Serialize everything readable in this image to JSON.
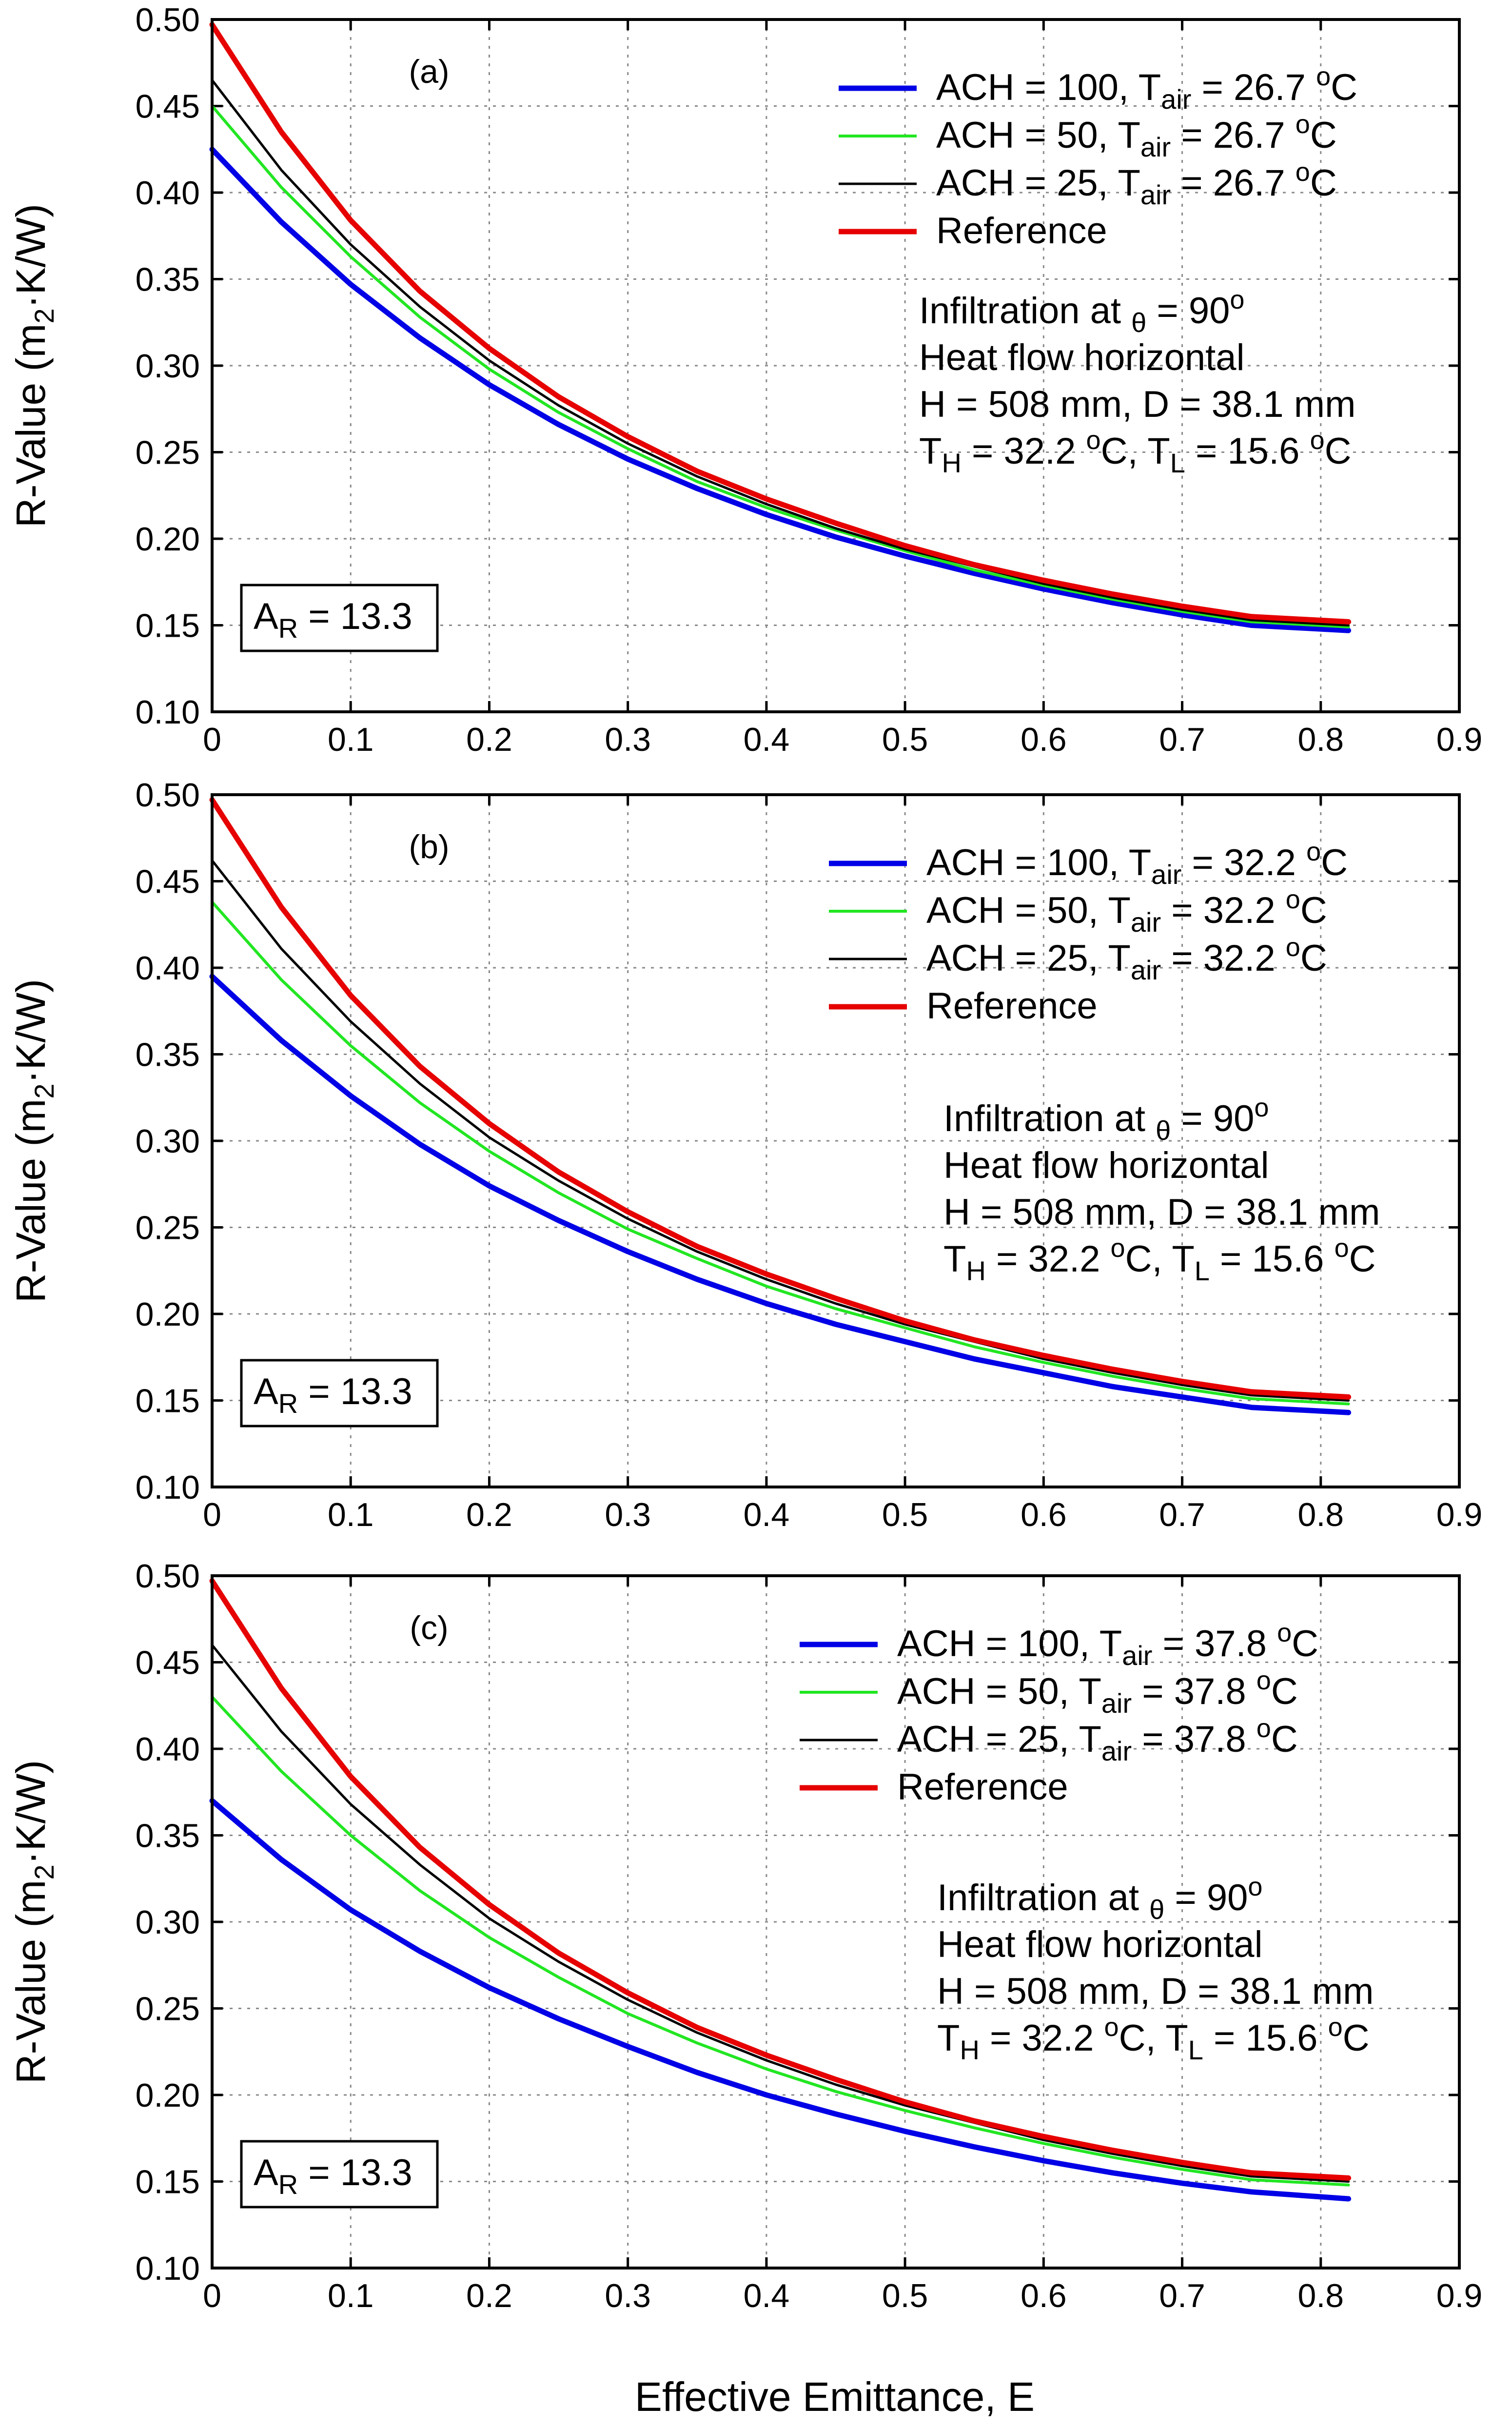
{
  "figure": {
    "xlabel": "Effective Emittance, E",
    "ylabel_parts": [
      "R-Value (m",
      "2",
      "·K/W)"
    ]
  },
  "chart_data": [
    {
      "type": "line",
      "panel": "(a)",
      "xlim": [
        0,
        0.9
      ],
      "ylim": [
        0.1,
        0.5
      ],
      "xticks": [
        "0",
        "0.1",
        "0.2",
        "0.3",
        "0.4",
        "0.5",
        "0.6",
        "0.7",
        "0.8",
        "0.9"
      ],
      "yticks": [
        "0.10",
        "0.15",
        "0.20",
        "0.25",
        "0.30",
        "0.35",
        "0.40",
        "0.45",
        "0.50"
      ],
      "grid": true,
      "x": [
        0,
        0.05,
        0.1,
        0.15,
        0.2,
        0.25,
        0.3,
        0.35,
        0.4,
        0.45,
        0.5,
        0.55,
        0.6,
        0.65,
        0.7,
        0.75,
        0.82
      ],
      "series": [
        {
          "name": "ACH = 100, Tair = 26.7 oC",
          "label_parts": [
            "ACH = 100, T",
            "air",
            " = 26.7 ",
            "o",
            "C"
          ],
          "color": "#0000e6",
          "values": [
            0.425,
            0.383,
            0.347,
            0.316,
            0.289,
            0.266,
            0.246,
            0.229,
            0.214,
            0.201,
            0.19,
            0.18,
            0.171,
            0.163,
            0.156,
            0.15,
            0.147
          ]
        },
        {
          "name": "ACH = 50, Tair = 26.7 oC",
          "label_parts": [
            "ACH = 50, T",
            "air",
            " = 26.7 ",
            "o",
            "C"
          ],
          "color": "#22e622",
          "values": [
            0.45,
            0.403,
            0.363,
            0.328,
            0.298,
            0.273,
            0.252,
            0.233,
            0.218,
            0.205,
            0.193,
            0.182,
            0.173,
            0.165,
            0.158,
            0.152,
            0.149
          ]
        },
        {
          "name": "ACH = 25, Tair = 26.7 oC",
          "label_parts": [
            "ACH = 25, T",
            "air",
            " = 26.7 ",
            "o",
            "C"
          ],
          "color": "#000000",
          "values": [
            0.465,
            0.413,
            0.37,
            0.334,
            0.303,
            0.277,
            0.255,
            0.236,
            0.22,
            0.206,
            0.194,
            0.184,
            0.174,
            0.166,
            0.159,
            0.153,
            0.15
          ]
        },
        {
          "name": "Reference",
          "label_parts": [
            "Reference",
            "",
            "",
            "",
            ""
          ],
          "color": "#e60000",
          "values": [
            0.497,
            0.435,
            0.384,
            0.343,
            0.31,
            0.282,
            0.259,
            0.239,
            0.223,
            0.209,
            0.196,
            0.185,
            0.176,
            0.168,
            0.161,
            0.155,
            0.152
          ]
        }
      ],
      "annotations": {
        "info": [
          [
            "Infiltration at ",
            "θ",
            " = 90",
            "o",
            ""
          ],
          [
            "Heat flow horizontal",
            "",
            "",
            "",
            ""
          ],
          [
            "H = 508 mm, D = 38.1 mm",
            "",
            "",
            "",
            ""
          ],
          [
            "T",
            "H",
            " = 32.2 ",
            "o",
            "C, T",
            "L",
            " = 15.6 ",
            "o",
            "C"
          ]
        ],
        "aspect_ratio": [
          "A",
          "R",
          " = 13.3"
        ]
      }
    },
    {
      "type": "line",
      "panel": "(b)",
      "xlim": [
        0,
        0.9
      ],
      "ylim": [
        0.1,
        0.5
      ],
      "xticks": [
        "0",
        "0.1",
        "0.2",
        "0.3",
        "0.4",
        "0.5",
        "0.6",
        "0.7",
        "0.8",
        "0.9"
      ],
      "yticks": [
        "0.10",
        "0.15",
        "0.20",
        "0.25",
        "0.30",
        "0.35",
        "0.40",
        "0.45",
        "0.50"
      ],
      "grid": true,
      "x": [
        0,
        0.05,
        0.1,
        0.15,
        0.2,
        0.25,
        0.3,
        0.35,
        0.4,
        0.45,
        0.5,
        0.55,
        0.6,
        0.65,
        0.7,
        0.75,
        0.82
      ],
      "series": [
        {
          "name": "ACH = 100, Tair = 32.2 oC",
          "label_parts": [
            "ACH = 100, T",
            "air",
            " = 32.2 ",
            "o",
            "C"
          ],
          "color": "#0000e6",
          "values": [
            0.395,
            0.358,
            0.326,
            0.298,
            0.274,
            0.254,
            0.236,
            0.22,
            0.206,
            0.194,
            0.184,
            0.174,
            0.166,
            0.158,
            0.152,
            0.146,
            0.143
          ]
        },
        {
          "name": "ACH = 50, Tair = 32.2 oC",
          "label_parts": [
            "ACH = 50, T",
            "air",
            " = 32.2 ",
            "o",
            "C"
          ],
          "color": "#22e622",
          "values": [
            0.438,
            0.393,
            0.355,
            0.322,
            0.294,
            0.27,
            0.249,
            0.232,
            0.216,
            0.203,
            0.192,
            0.181,
            0.172,
            0.164,
            0.157,
            0.151,
            0.148
          ]
        },
        {
          "name": "ACH = 25, Tair = 32.2 oC",
          "label_parts": [
            "ACH = 25, T",
            "air",
            " = 32.2 ",
            "o",
            "C"
          ],
          "color": "#000000",
          "values": [
            0.462,
            0.411,
            0.369,
            0.333,
            0.302,
            0.277,
            0.255,
            0.236,
            0.22,
            0.206,
            0.194,
            0.184,
            0.174,
            0.166,
            0.159,
            0.153,
            0.15
          ]
        },
        {
          "name": "Reference",
          "label_parts": [
            "Reference",
            "",
            "",
            "",
            ""
          ],
          "color": "#e60000",
          "values": [
            0.497,
            0.435,
            0.384,
            0.343,
            0.31,
            0.282,
            0.259,
            0.239,
            0.223,
            0.209,
            0.196,
            0.185,
            0.176,
            0.168,
            0.161,
            0.155,
            0.152
          ]
        }
      ],
      "annotations": {
        "info": [
          [
            "Infiltration at ",
            "θ",
            " = 90",
            "o",
            ""
          ],
          [
            "Heat flow horizontal",
            "",
            "",
            "",
            ""
          ],
          [
            "H = 508 mm, D = 38.1 mm",
            "",
            "",
            "",
            ""
          ],
          [
            "T",
            "H",
            " = 32.2 ",
            "o",
            "C, T",
            "L",
            " = 15.6 ",
            "o",
            "C"
          ]
        ],
        "aspect_ratio": [
          "A",
          "R",
          " = 13.3"
        ]
      }
    },
    {
      "type": "line",
      "panel": "(c)",
      "xlim": [
        0,
        0.9
      ],
      "ylim": [
        0.1,
        0.5
      ],
      "xticks": [
        "0",
        "0.1",
        "0.2",
        "0.3",
        "0.4",
        "0.5",
        "0.6",
        "0.7",
        "0.8",
        "0.9"
      ],
      "yticks": [
        "0.10",
        "0.15",
        "0.20",
        "0.25",
        "0.30",
        "0.35",
        "0.40",
        "0.45",
        "0.50"
      ],
      "grid": true,
      "x": [
        0,
        0.05,
        0.1,
        0.15,
        0.2,
        0.25,
        0.3,
        0.35,
        0.4,
        0.45,
        0.5,
        0.55,
        0.6,
        0.65,
        0.7,
        0.75,
        0.82
      ],
      "series": [
        {
          "name": "ACH = 100, Tair = 37.8 oC",
          "label_parts": [
            "ACH = 100, T",
            "air",
            " = 37.8 ",
            "o",
            "C"
          ],
          "color": "#0000e6",
          "values": [
            0.37,
            0.336,
            0.307,
            0.283,
            0.262,
            0.244,
            0.228,
            0.213,
            0.2,
            0.189,
            0.179,
            0.17,
            0.162,
            0.155,
            0.149,
            0.144,
            0.14
          ]
        },
        {
          "name": "ACH = 50, Tair = 37.8 oC",
          "label_parts": [
            "ACH = 50, T",
            "air",
            " = 37.8 ",
            "o",
            "C"
          ],
          "color": "#22e622",
          "values": [
            0.43,
            0.387,
            0.35,
            0.318,
            0.291,
            0.268,
            0.247,
            0.23,
            0.215,
            0.202,
            0.191,
            0.181,
            0.172,
            0.164,
            0.157,
            0.151,
            0.148
          ]
        },
        {
          "name": "ACH = 25, Tair = 37.8 oC",
          "label_parts": [
            "ACH = 25, T",
            "air",
            " = 37.8 ",
            "o",
            "C"
          ],
          "color": "#000000",
          "values": [
            0.46,
            0.41,
            0.368,
            0.333,
            0.302,
            0.277,
            0.255,
            0.236,
            0.22,
            0.206,
            0.194,
            0.184,
            0.174,
            0.166,
            0.159,
            0.153,
            0.15
          ]
        },
        {
          "name": "Reference",
          "label_parts": [
            "Reference",
            "",
            "",
            "",
            ""
          ],
          "color": "#e60000",
          "values": [
            0.497,
            0.435,
            0.384,
            0.343,
            0.31,
            0.282,
            0.259,
            0.239,
            0.223,
            0.209,
            0.196,
            0.185,
            0.176,
            0.168,
            0.161,
            0.155,
            0.152
          ]
        }
      ],
      "annotations": {
        "info": [
          [
            "Infiltration at ",
            "θ",
            " = 90",
            "o",
            ""
          ],
          [
            "Heat flow horizontal",
            "",
            "",
            "",
            ""
          ],
          [
            "H = 508 mm, D = 38.1 mm",
            "",
            "",
            "",
            ""
          ],
          [
            "T",
            "H",
            " = 32.2 ",
            "o",
            "C, T",
            "L",
            " = 15.6 ",
            "o",
            "C"
          ]
        ],
        "aspect_ratio": [
          "A",
          "R",
          " = 13.3"
        ]
      }
    }
  ]
}
